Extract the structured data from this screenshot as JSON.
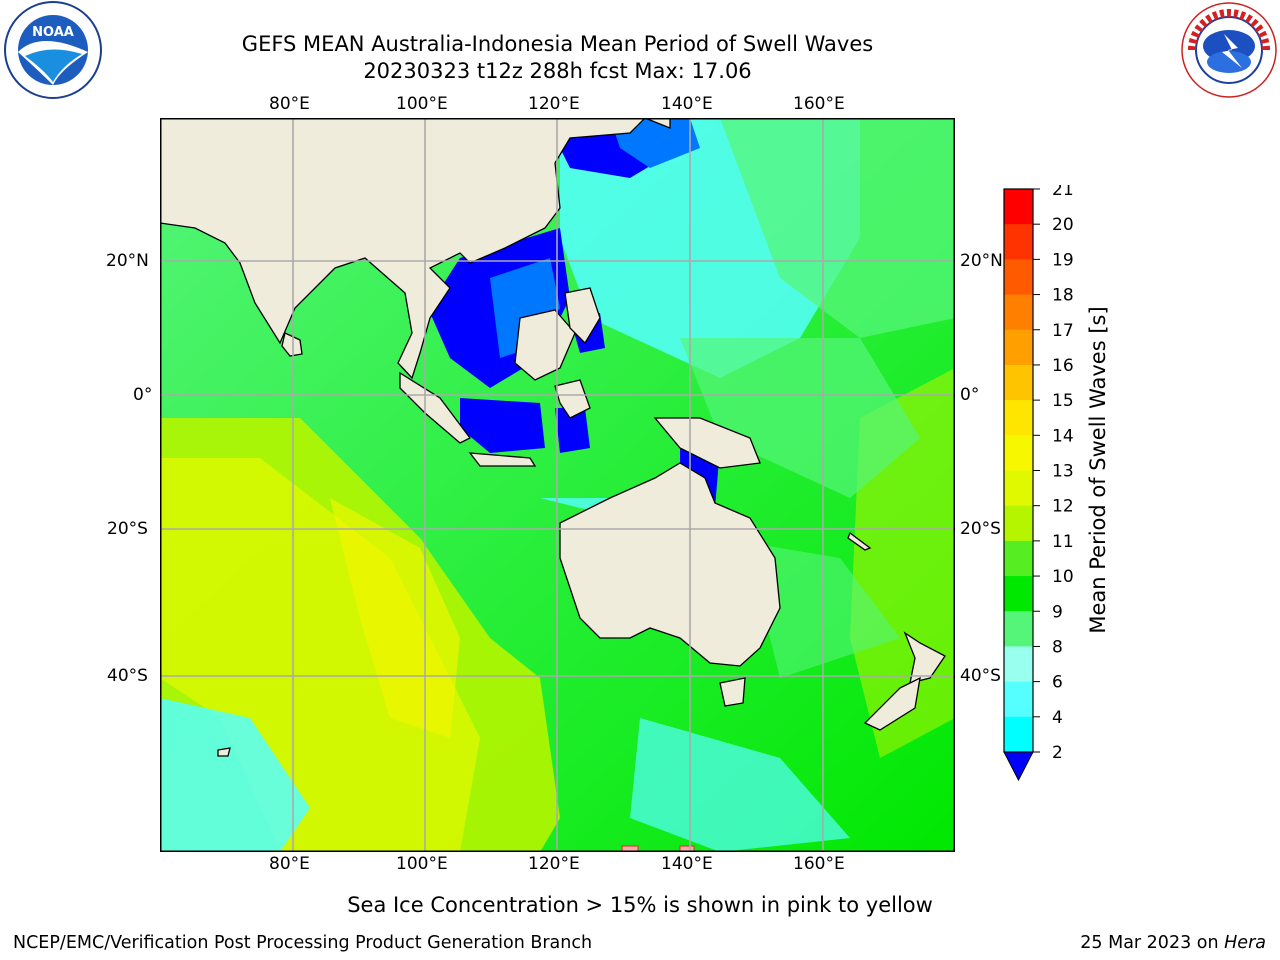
{
  "header": {
    "title_line1": "GEFS MEAN Australia-Indonesia Mean Period of Swell Waves",
    "title_line2": "20230323 t12z 288h fcst   Max: 17.06"
  },
  "logos": {
    "noaa_text": "NOAA",
    "noaa_ring_text": "NATIONAL OCEANIC AND ATMOSPHERIC ADMINISTRATION · U.S. DEPARTMENT OF COMMERCE",
    "nws_ring_text": "NATIONAL WEATHER SERVICE"
  },
  "map": {
    "lon_ticks": [
      "80°E",
      "100°E",
      "120°E",
      "140°E",
      "160°E"
    ],
    "lat_ticks": [
      "20°N",
      "0°",
      "20°S",
      "40°S"
    ],
    "extent": {
      "lon": [
        60,
        180
      ],
      "lat": [
        -55,
        40
      ]
    },
    "gridlines": true,
    "land_color": "#efecdc",
    "grid_color": "#b0b0b0"
  },
  "colorbar": {
    "label": "Mean Period of Swell Waves [s]",
    "ticks": [
      "21",
      "20",
      "19",
      "18",
      "17",
      "16",
      "15",
      "14",
      "13",
      "12",
      "11",
      "10",
      "9",
      "8",
      "6",
      "4",
      "2"
    ],
    "colors": [
      "#ff0000",
      "#ff3300",
      "#ff5a00",
      "#ff8000",
      "#ffa000",
      "#ffc400",
      "#ffe600",
      "#f7f700",
      "#e0f800",
      "#b5f500",
      "#55ee22",
      "#00e800",
      "#55f57a",
      "#99ffee",
      "#55ffff",
      "#00ffff",
      "#0077ff"
    ],
    "extend_color": "#0000ff"
  },
  "footer": {
    "note": "Sea Ice Concentration > 15% is shown in pink to yellow",
    "org": "NCEP/EMC/Verification Post Processing Product Generation Branch",
    "date": "25 Mar 2023 on ",
    "machine": "Hera"
  }
}
